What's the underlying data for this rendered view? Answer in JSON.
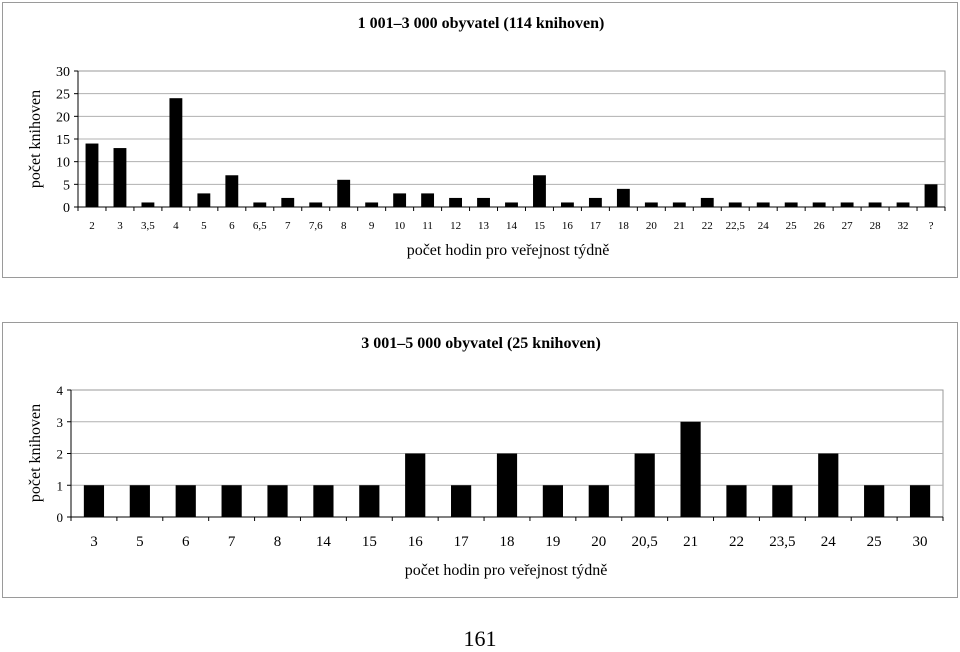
{
  "chart_data": [
    {
      "type": "bar",
      "title": "1 001–3 000 obyvatel (114 knihoven)",
      "xlabel": "počet hodin pro veřejnost týdně",
      "ylabel": "počet knihoven",
      "ylim": [
        0,
        30
      ],
      "yticks": [
        "0",
        "5",
        "10",
        "15",
        "20",
        "25",
        "30"
      ],
      "grid": true,
      "categories": [
        "2",
        "3",
        "3,5",
        "4",
        "5",
        "6",
        "6,5",
        "7",
        "7,6",
        "8",
        "9",
        "10",
        "11",
        "12",
        "13",
        "14",
        "15",
        "16",
        "17",
        "18",
        "20",
        "21",
        "22",
        "22,5",
        "24",
        "25",
        "26",
        "27",
        "28",
        "32",
        "?"
      ],
      "values": [
        14,
        13,
        1,
        24,
        3,
        7,
        1,
        2,
        1,
        6,
        1,
        3,
        3,
        2,
        2,
        1,
        7,
        1,
        2,
        4,
        1,
        1,
        2,
        1,
        1,
        1,
        1,
        1,
        1,
        1,
        5
      ],
      "bar_color": "#000000"
    },
    {
      "type": "bar",
      "title": "3 001–5 000 obyvatel (25 knihoven)",
      "xlabel": "počet hodin pro veřejnost týdně",
      "ylabel": "počet knihoven",
      "ylim": [
        0,
        4
      ],
      "yticks": [
        "0",
        "1",
        "2",
        "3",
        "4"
      ],
      "grid": true,
      "categories": [
        "3",
        "5",
        "6",
        "7",
        "8",
        "14",
        "15",
        "16",
        "17",
        "18",
        "19",
        "20",
        "20,5",
        "21",
        "22",
        "23,5",
        "24",
        "25",
        "30"
      ],
      "values": [
        1,
        1,
        1,
        1,
        1,
        1,
        1,
        2,
        1,
        2,
        1,
        1,
        2,
        3,
        1,
        1,
        2,
        1,
        1
      ],
      "bar_color": "#000000"
    }
  ],
  "page_number": "161"
}
